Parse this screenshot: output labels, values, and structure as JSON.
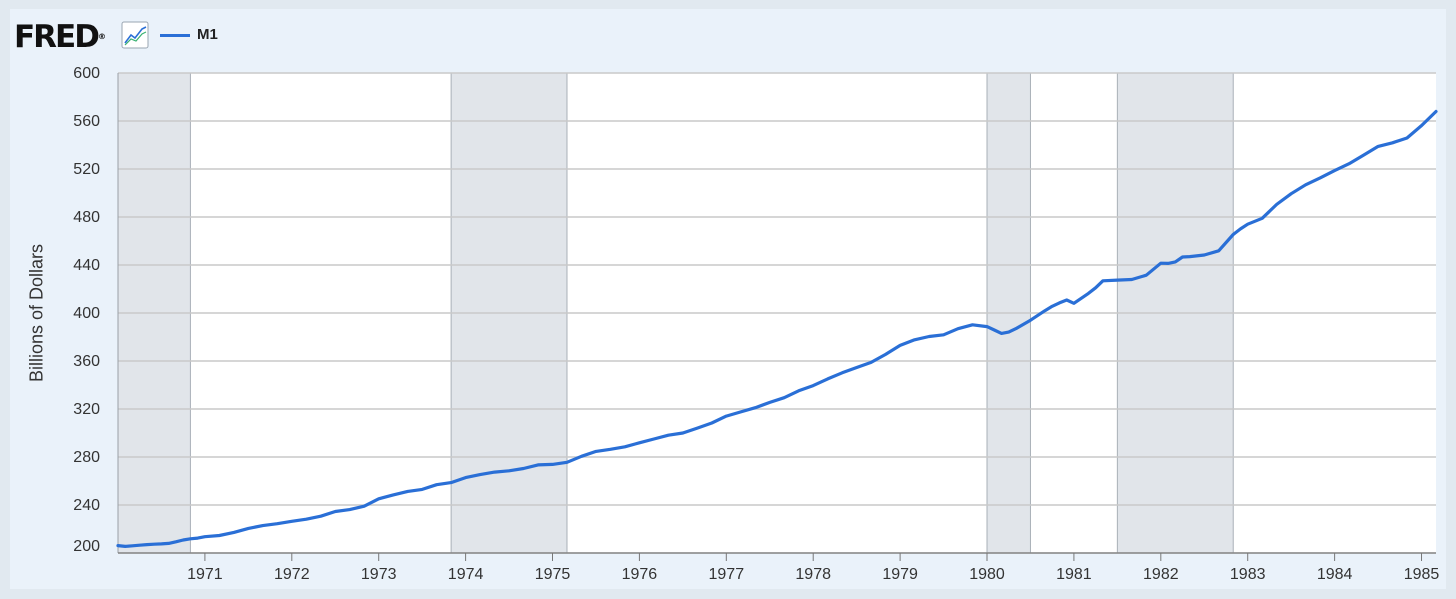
{
  "logo": {
    "text": "FRED",
    "reg": "®"
  },
  "icons": {
    "graph": "line-graph-icon"
  },
  "colors": {
    "series": "#2a6fd6",
    "recession": "#e1e5ea",
    "grid": "#c9c9c9"
  },
  "chart_data": {
    "type": "line",
    "title": "",
    "xlabel": "",
    "ylabel": "Billions of Dollars",
    "ylim": [
      200,
      600
    ],
    "xlim": [
      "1970-01",
      "1985-03"
    ],
    "yticks": [
      "200",
      "240",
      "280",
      "320",
      "360",
      "400",
      "440",
      "480",
      "520",
      "560",
      "600"
    ],
    "xticks": [
      "1971",
      "1972",
      "1973",
      "1974",
      "1975",
      "1976",
      "1977",
      "1978",
      "1979",
      "1980",
      "1981",
      "1982",
      "1983",
      "1984",
      "1985"
    ],
    "grid": true,
    "legend": "top-left",
    "recessions": [
      [
        "1970-01",
        "1970-11"
      ],
      [
        "1973-11",
        "1975-03"
      ],
      [
        "1980-01",
        "1980-07"
      ],
      [
        "1981-07",
        "1982-11"
      ]
    ],
    "series": [
      {
        "name": "M1",
        "x": [
          "1970-01",
          "1970-02",
          "1970-03",
          "1970-04",
          "1970-05",
          "1970-06",
          "1970-07",
          "1970-08",
          "1970-09",
          "1970-10",
          "1970-11",
          "1970-12",
          "1971-01",
          "1971-03",
          "1971-05",
          "1971-07",
          "1971-09",
          "1971-11",
          "1972-01",
          "1972-03",
          "1972-05",
          "1972-07",
          "1972-09",
          "1972-11",
          "1973-01",
          "1973-03",
          "1973-05",
          "1973-07",
          "1973-09",
          "1973-11",
          "1974-01",
          "1974-03",
          "1974-05",
          "1974-07",
          "1974-09",
          "1974-11",
          "1975-01",
          "1975-03",
          "1975-05",
          "1975-07",
          "1975-09",
          "1975-11",
          "1976-01",
          "1976-03",
          "1976-05",
          "1976-07",
          "1976-09",
          "1976-11",
          "1977-01",
          "1977-03",
          "1977-05",
          "1977-07",
          "1977-09",
          "1977-11",
          "1978-01",
          "1978-03",
          "1978-05",
          "1978-07",
          "1978-09",
          "1978-11",
          "1979-01",
          "1979-03",
          "1979-05",
          "1979-07",
          "1979-09",
          "1979-11",
          "1980-01",
          "1980-02",
          "1980-03",
          "1980-04",
          "1980-05",
          "1980-07",
          "1980-09",
          "1980-10",
          "1980-11",
          "1980-12",
          "1981-01",
          "1981-03",
          "1981-04",
          "1981-05",
          "1981-07",
          "1981-09",
          "1981-11",
          "1982-01",
          "1982-02",
          "1982-03",
          "1982-04",
          "1982-05",
          "1982-07",
          "1982-09",
          "1982-11",
          "1982-12",
          "1983-01",
          "1983-03",
          "1983-05",
          "1983-07",
          "1983-09",
          "1983-11",
          "1984-01",
          "1984-03",
          "1984-05",
          "1984-07",
          "1984-09",
          "1984-11",
          "1985-01",
          "1985-03"
        ],
        "values": [
          206.2,
          205.5,
          206.0,
          206.5,
          207.0,
          207.3,
          207.6,
          208.0,
          209.3,
          210.8,
          211.8,
          212.4,
          213.6,
          214.6,
          217.2,
          220.5,
          222.8,
          224.4,
          226.4,
          228.2,
          230.7,
          234.6,
          236.2,
          239.0,
          245.2,
          248.4,
          251.3,
          253.0,
          256.9,
          258.7,
          262.8,
          265.3,
          267.4,
          268.5,
          270.4,
          273.4,
          273.8,
          275.6,
          280.6,
          284.7,
          286.4,
          288.5,
          291.8,
          295.0,
          298.2,
          300.0,
          304.1,
          308.3,
          314.1,
          317.6,
          321.1,
          325.5,
          329.4,
          335.2,
          339.5,
          345.1,
          350.2,
          354.6,
          358.8,
          365.5,
          373.0,
          377.7,
          380.4,
          381.8,
          386.9,
          390.2,
          388.7,
          385.8,
          383.0,
          384.1,
          387.0,
          394.0,
          401.9,
          405.6,
          408.4,
          410.8,
          408.1,
          416.3,
          421.0,
          426.8,
          427.4,
          427.9,
          431.5,
          441.5,
          441.3,
          442.6,
          446.7,
          447.0,
          448.3,
          451.8,
          465.4,
          470.1,
          474.0,
          478.9,
          490.5,
          499.4,
          506.8,
          512.6,
          518.7,
          524.4,
          531.6,
          538.8,
          541.8,
          545.8,
          556.2,
          567.9
        ]
      }
    ]
  }
}
